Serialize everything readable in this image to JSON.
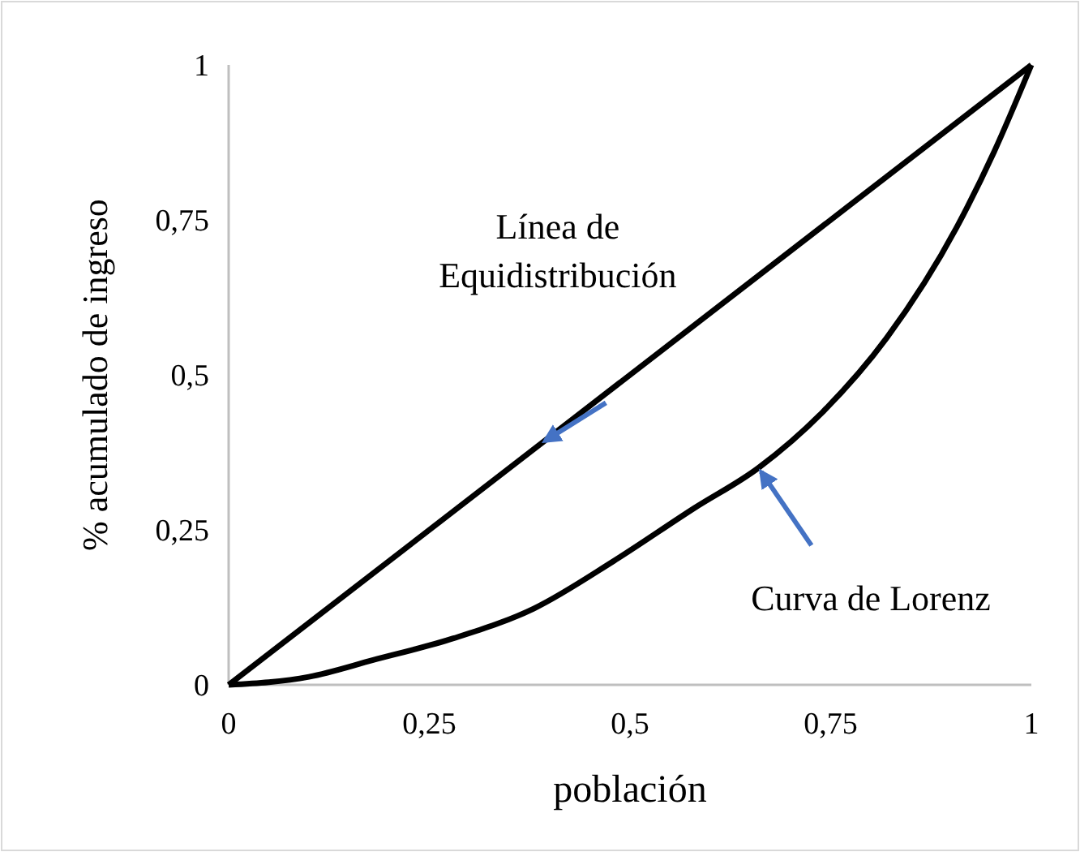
{
  "chart_data": {
    "type": "line",
    "xlabel": "población",
    "ylabel": "% acumulado de ingreso",
    "xlim": [
      0,
      1
    ],
    "ylim": [
      0,
      1
    ],
    "xticks": [
      0,
      {
        "value": 0.25,
        "label": "0,25"
      },
      {
        "value": 0.5,
        "label": "0,5"
      },
      {
        "value": 0.75,
        "label": "0,75"
      },
      1
    ],
    "yticks": [
      0,
      {
        "value": 0.25,
        "label": "0,25"
      },
      {
        "value": 0.5,
        "label": "0,5"
      },
      {
        "value": 0.75,
        "label": "0,75"
      },
      1
    ],
    "grid": false,
    "marker": "none",
    "line_style": "solid",
    "series": [
      {
        "color": "#000000",
        "x": [
          0,
          1
        ],
        "values": [
          0,
          1
        ]
      },
      {
        "color": "#000000",
        "x": [
          0,
          0.1,
          0.18,
          0.28,
          0.38,
          0.48,
          0.58,
          0.66,
          0.74,
          0.82,
          0.907,
          0.954,
          1
        ],
        "values": [
          0,
          0.013,
          0.04,
          0.075,
          0.123,
          0.2,
          0.285,
          0.35,
          0.44,
          0.56,
          0.738,
          0.861,
          1
        ]
      }
    ],
    "annotations": [
      "Línea de\nEquidistribución",
      {
        "text": "Curva de Lorenz",
        "x": 0.66,
        "y": 0.35
      }
    ]
  }
}
